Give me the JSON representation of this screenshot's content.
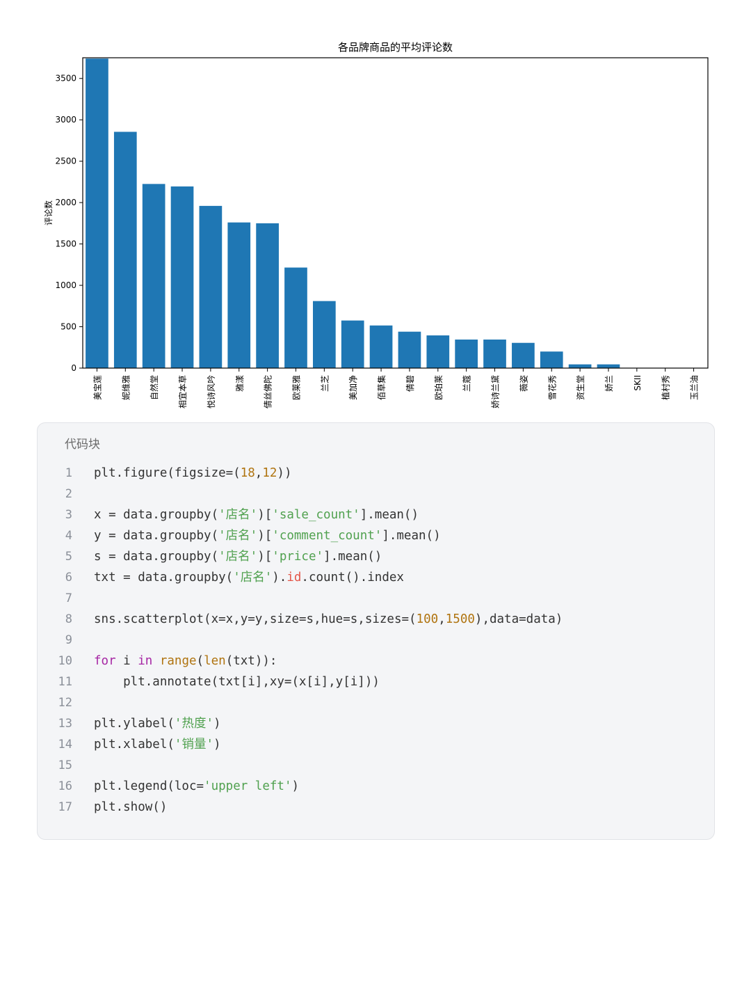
{
  "chart_data": {
    "type": "bar",
    "title": "各品牌商品的平均评论数",
    "ylabel": "评论数",
    "xlabel": "",
    "ylim": [
      0,
      3750
    ],
    "yticks": [
      0,
      500,
      1000,
      1500,
      2000,
      2500,
      3000,
      3500
    ],
    "categories": [
      "美宝莲",
      "妮维雅",
      "自然堂",
      "相宜本草",
      "悦诗风吟",
      "雅漾",
      "倩丝佛陀",
      "欧莱雅",
      "兰芝",
      "美加净",
      "佰草集",
      "倩碧",
      "欧珀莱",
      "兰蔻",
      "娇诗兰黛",
      "薇姿",
      "雪花秀",
      "资生堂",
      "娇兰",
      "SKII",
      "植村秀",
      "玉兰油"
    ],
    "category_labels": [
      "美宝莲",
      "妮维雅",
      "自然堂",
      "相宜本草",
      "悦诗风吟",
      "雅漾",
      "倩丝佛陀",
      "欧莱雅",
      "兰芝",
      "美加净",
      "佰草集",
      "倩碧",
      "欧珀莱",
      "兰蔻",
      "娇诗兰黛",
      "薇姿",
      "雪花秀",
      "资生堂",
      "娇兰",
      "SKII",
      "植村秀",
      "玉兰油"
    ],
    "values": [
      3740,
      2855,
      2225,
      2195,
      1960,
      1760,
      1750,
      1215,
      810,
      575,
      515,
      440,
      395,
      345,
      345,
      305,
      200,
      45,
      45,
      0,
      0,
      0
    ],
    "bar_color": "#1f77b4",
    "grid": false
  },
  "code_block": {
    "header": "代码块",
    "lines": [
      [
        {
          "t": "plt.figure(figsize=("
        },
        {
          "t": "18",
          "c": "num"
        },
        {
          "t": ","
        },
        {
          "t": "12",
          "c": "num"
        },
        {
          "t": "))"
        }
      ],
      [],
      [
        {
          "t": "x = data.groupby("
        },
        {
          "t": "'店名'",
          "c": "str"
        },
        {
          "t": ")["
        },
        {
          "t": "'sale_count'",
          "c": "str"
        },
        {
          "t": "].mean()"
        }
      ],
      [
        {
          "t": "y = data.groupby("
        },
        {
          "t": "'店名'",
          "c": "str"
        },
        {
          "t": ")["
        },
        {
          "t": "'comment_count'",
          "c": "str"
        },
        {
          "t": "].mean()"
        }
      ],
      [
        {
          "t": "s = data.groupby("
        },
        {
          "t": "'店名'",
          "c": "str"
        },
        {
          "t": ")["
        },
        {
          "t": "'price'",
          "c": "str"
        },
        {
          "t": "].mean()"
        }
      ],
      [
        {
          "t": "txt = data.groupby("
        },
        {
          "t": "'店名'",
          "c": "str"
        },
        {
          "t": ")."
        },
        {
          "t": "id",
          "c": "attr"
        },
        {
          "t": ".count().index"
        }
      ],
      [],
      [
        {
          "t": "sns.scatterplot(x=x,y=y,size=s,hue=s,sizes=("
        },
        {
          "t": "100",
          "c": "num"
        },
        {
          "t": ","
        },
        {
          "t": "1500",
          "c": "num"
        },
        {
          "t": "),data=data)"
        }
      ],
      [],
      [
        {
          "t": "for",
          "c": "kw"
        },
        {
          "t": " i "
        },
        {
          "t": "in",
          "c": "kw"
        },
        {
          "t": " "
        },
        {
          "t": "range",
          "c": "fn"
        },
        {
          "t": "("
        },
        {
          "t": "len",
          "c": "fn"
        },
        {
          "t": "(txt)):"
        }
      ],
      [
        {
          "t": "    plt.annotate(txt[i],xy=(x[i],y[i]))"
        }
      ],
      [],
      [
        {
          "t": "plt.ylabel("
        },
        {
          "t": "'热度'",
          "c": "str"
        },
        {
          "t": ")"
        }
      ],
      [
        {
          "t": "plt.xlabel("
        },
        {
          "t": "'销量'",
          "c": "str"
        },
        {
          "t": ")"
        }
      ],
      [],
      [
        {
          "t": "plt.legend(loc="
        },
        {
          "t": "'upper left'",
          "c": "str"
        },
        {
          "t": ")"
        }
      ],
      [
        {
          "t": "plt.show()"
        }
      ]
    ]
  }
}
